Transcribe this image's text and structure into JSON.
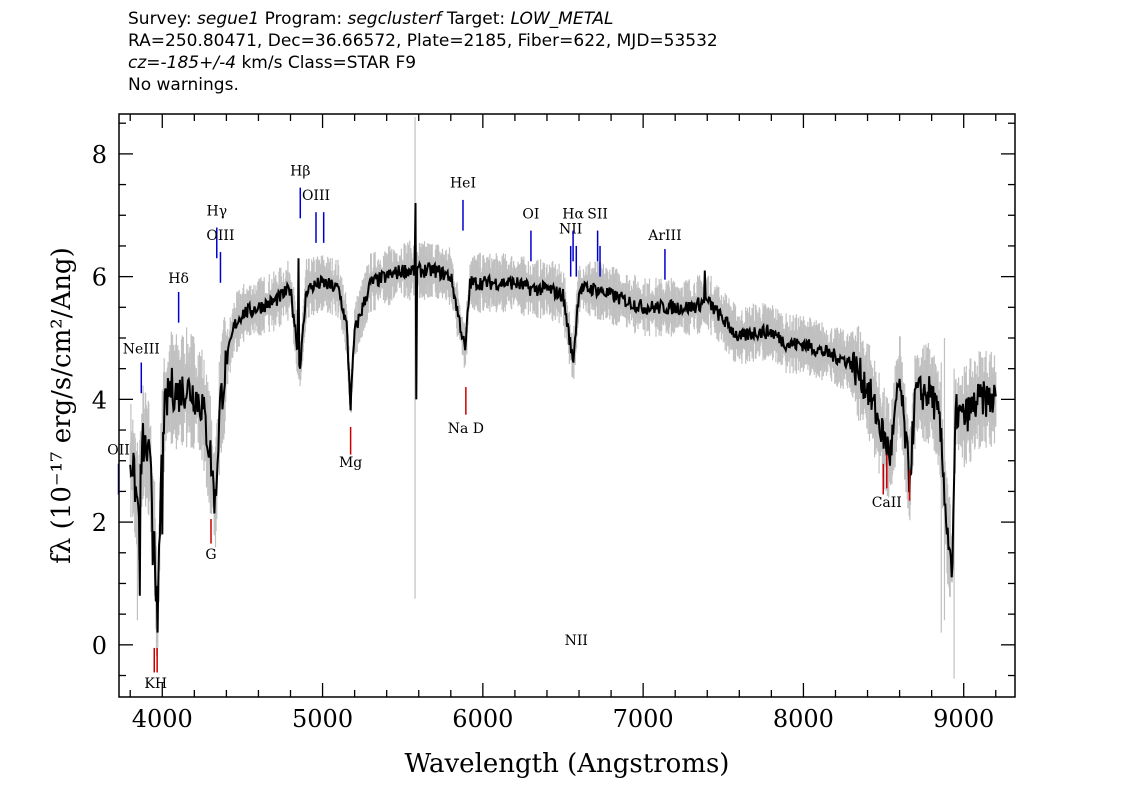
{
  "header": {
    "line1": {
      "survey_label": "Survey:",
      "survey": "segue1",
      "program_label": "Program:",
      "program": "segclusterf",
      "target_label": "Target:",
      "target": "LOW_METAL"
    },
    "line2": "RA=250.80471, Dec=36.66572, Plate=2185, Fiber=622, MJD=53532",
    "line3": {
      "cz": "cz=-185+/-4",
      "rest": "km/s Class=STAR F9"
    },
    "line4": "No warnings."
  },
  "chart_data": {
    "type": "line",
    "xlabel": "Wavelength (Angstroms)",
    "ylabel": "fλ (10⁻¹⁷ erg/s/cm²/Ang)",
    "xlim": [
      3730,
      9320
    ],
    "ylim": [
      -0.85,
      8.65
    ],
    "xticks": [
      4000,
      5000,
      6000,
      7000,
      8000,
      9000
    ],
    "yticks": [
      0,
      2,
      4,
      6,
      8
    ],
    "line_color": "#000000",
    "noise_color": "#c0c0c0",
    "emission_color": "#0000cc",
    "absorption_color": "#cc0000",
    "spectrum_anchors": [
      [
        3810,
        3.0
      ],
      [
        3850,
        2.2
      ],
      [
        3880,
        3.3
      ],
      [
        3920,
        3.0
      ],
      [
        3950,
        1.9
      ],
      [
        3970,
        0.2
      ],
      [
        4000,
        3.6
      ],
      [
        4050,
        4.2
      ],
      [
        4100,
        4.1
      ],
      [
        4150,
        4.2
      ],
      [
        4200,
        4.1
      ],
      [
        4250,
        3.9
      ],
      [
        4300,
        3.1
      ],
      [
        4330,
        2.3
      ],
      [
        4360,
        3.9
      ],
      [
        4400,
        4.6
      ],
      [
        4450,
        5.2
      ],
      [
        4500,
        5.4
      ],
      [
        4600,
        5.5
      ],
      [
        4700,
        5.6
      ],
      [
        4800,
        5.8
      ],
      [
        4860,
        4.5
      ],
      [
        4900,
        5.8
      ],
      [
        5000,
        5.9
      ],
      [
        5100,
        5.8
      ],
      [
        5150,
        5.2
      ],
      [
        5175,
        3.9
      ],
      [
        5200,
        5.1
      ],
      [
        5300,
        5.9
      ],
      [
        5400,
        6.0
      ],
      [
        5500,
        6.1
      ],
      [
        5600,
        6.1
      ],
      [
        5700,
        6.1
      ],
      [
        5800,
        6.0
      ],
      [
        5890,
        4.8
      ],
      [
        5920,
        5.9
      ],
      [
        6000,
        5.9
      ],
      [
        6100,
        5.9
      ],
      [
        6200,
        5.9
      ],
      [
        6300,
        5.8
      ],
      [
        6400,
        5.8
      ],
      [
        6500,
        5.7
      ],
      [
        6563,
        4.6
      ],
      [
        6600,
        5.8
      ],
      [
        6700,
        5.8
      ],
      [
        6800,
        5.7
      ],
      [
        6900,
        5.6
      ],
      [
        7000,
        5.5
      ],
      [
        7100,
        5.5
      ],
      [
        7200,
        5.5
      ],
      [
        7300,
        5.5
      ],
      [
        7400,
        5.6
      ],
      [
        7500,
        5.3
      ],
      [
        7600,
        5.0
      ],
      [
        7700,
        5.1
      ],
      [
        7800,
        5.1
      ],
      [
        7900,
        4.9
      ],
      [
        8000,
        4.9
      ],
      [
        8100,
        4.8
      ],
      [
        8200,
        4.7
      ],
      [
        8300,
        4.6
      ],
      [
        8400,
        4.2
      ],
      [
        8498,
        3.4
      ],
      [
        8542,
        3.1
      ],
      [
        8600,
        4.3
      ],
      [
        8662,
        2.7
      ],
      [
        8700,
        4.1
      ],
      [
        8800,
        4.1
      ],
      [
        8850,
        3.6
      ],
      [
        8900,
        1.8
      ],
      [
        8930,
        1.3
      ],
      [
        8950,
        3.8
      ],
      [
        9000,
        3.7
      ],
      [
        9100,
        4.0
      ],
      [
        9200,
        4.0
      ]
    ],
    "spikes": [
      {
        "x": 3860,
        "y": 0.8
      },
      {
        "x": 3940,
        "y": 1.3
      },
      {
        "x": 3968,
        "y": 0.2
      },
      {
        "x": 4000,
        "y": 1.8
      },
      {
        "x": 4850,
        "y": 6.3
      },
      {
        "x": 4860,
        "y": 4.5
      },
      {
        "x": 5580,
        "y": 7.2
      },
      {
        "x": 5585,
        "y": 4.0
      },
      {
        "x": 5890,
        "y": 4.8
      },
      {
        "x": 6563,
        "y": 4.6
      },
      {
        "x": 7385,
        "y": 6.1
      },
      {
        "x": 8893,
        "y": 1.8
      },
      {
        "x": 8926,
        "y": 1.1
      }
    ],
    "noise_spikes": [
      {
        "x": 5577,
        "y0": 0.75,
        "y1": 8.6
      },
      {
        "x": 8860,
        "y0": 0.2,
        "y1": 4.6
      },
      {
        "x": 8940,
        "y0": -0.55,
        "y1": 4.5
      },
      {
        "x": 8880,
        "y0": 0.4,
        "y1": 5.0
      },
      {
        "x": 3845,
        "y0": 0.4,
        "y1": 3.3
      }
    ],
    "emission_lines": [
      {
        "label": "OII",
        "x": 3727,
        "y_text": 3.1,
        "y_top": 2.95,
        "y_bot": 2.45
      },
      {
        "label": "NeIII",
        "x": 3869,
        "y_text": 4.75,
        "y_top": 4.6,
        "y_bot": 4.1
      },
      {
        "label": "Hδ",
        "x": 4102,
        "y_text": 5.9,
        "y_top": 5.75,
        "y_bot": 5.25
      },
      {
        "label": "Hγ",
        "x": 4340,
        "y_text": 7.0,
        "y_top": 6.8,
        "y_bot": 6.3
      },
      {
        "label": "OIII",
        "x": 4363,
        "y_text": 6.6,
        "y_top": 6.4,
        "y_bot": 5.9
      },
      {
        "label": "Hβ",
        "x": 4861,
        "y_text": 7.65,
        "y_top": 7.45,
        "y_bot": 6.95
      },
      {
        "label": "OIII",
        "x": 4959,
        "y_text": 7.25,
        "y_top": 7.05,
        "y_bot": 6.55
      },
      {
        "label": "",
        "x": 5007,
        "y_text": 0,
        "y_top": 7.05,
        "y_bot": 6.55
      },
      {
        "label": "HeI",
        "x": 5876,
        "y_text": 7.45,
        "y_top": 7.25,
        "y_bot": 6.75
      },
      {
        "label": "OI",
        "x": 6300,
        "y_text": 6.95,
        "y_top": 6.75,
        "y_bot": 6.25
      },
      {
        "label": "NII",
        "x": 6548,
        "y_text": 6.7,
        "y_top": 6.5,
        "y_bot": 6.0
      },
      {
        "label": "Hα",
        "x": 6563,
        "y_text": 6.95,
        "y_top": 6.75,
        "y_bot": 6.25
      },
      {
        "label": "NII",
        "x": 6583,
        "y_text": 0,
        "y_top": 6.5,
        "y_bot": 6.0
      },
      {
        "label": "SII",
        "x": 6716,
        "y_text": 6.95,
        "y_top": 6.75,
        "y_bot": 6.25
      },
      {
        "label": "",
        "x": 6731,
        "y_text": 0,
        "y_top": 6.5,
        "y_bot": 6.0
      },
      {
        "label": "ArIII",
        "x": 7136,
        "y_text": 6.6,
        "y_top": 6.45,
        "y_bot": 5.95
      }
    ],
    "absorption_lines": [
      {
        "label": "KH",
        "x": 3950,
        "y_text": -0.7,
        "y_top": -0.05,
        "y_bot": -0.45,
        "x2": 3968
      },
      {
        "label": "G",
        "x": 4304,
        "y_text": 1.4,
        "y_top": 2.05,
        "y_bot": 1.65
      },
      {
        "label": "Mg",
        "x": 5175,
        "y_text": 2.9,
        "y_top": 3.55,
        "y_bot": 3.1
      },
      {
        "label": "Na D",
        "x": 5894,
        "y_text": 3.45,
        "y_top": 4.2,
        "y_bot": 3.75
      },
      {
        "label": "CaII",
        "x": 8520,
        "y_text": 2.25,
        "y_top": 3.1,
        "y_bot": 2.55
      }
    ],
    "extra_absorption_ticks": [
      {
        "x": 8498,
        "y_top": 2.95,
        "y_bot": 2.45
      },
      {
        "x": 8662,
        "y_top": 2.85,
        "y_bot": 2.35
      }
    ]
  }
}
